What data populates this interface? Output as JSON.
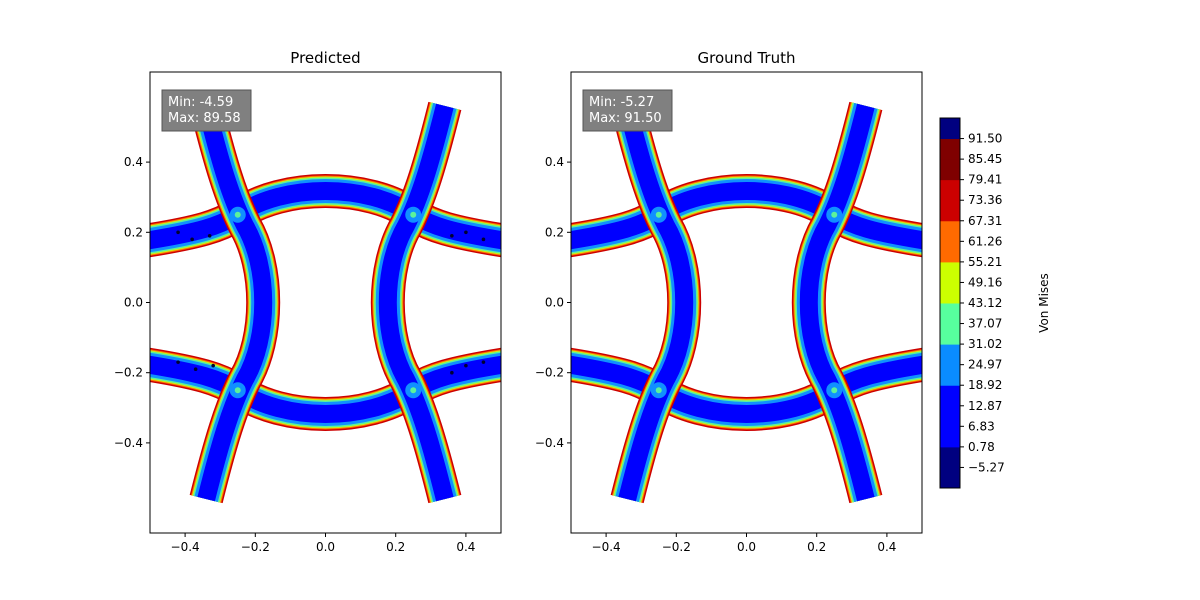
{
  "chart_data": [
    {
      "type": "heatmap",
      "title": "Predicted",
      "xlim": [
        -0.5,
        0.5
      ],
      "ylim": [
        -0.5,
        0.5
      ],
      "xticks": [
        "−0.4",
        "−0.2",
        "0.0",
        "0.2",
        "0.4"
      ],
      "yticks": [
        "−0.4",
        "−0.2",
        "0.0",
        "0.2",
        "0.4"
      ],
      "annotation": {
        "min_label": "Min: -4.59",
        "max_label": "Max: 89.58",
        "min": -4.59,
        "max": 89.58
      },
      "noise": true
    },
    {
      "type": "heatmap",
      "title": "Ground Truth",
      "xlim": [
        -0.5,
        0.5
      ],
      "ylim": [
        -0.5,
        0.5
      ],
      "xticks": [
        "−0.4",
        "−0.2",
        "0.0",
        "0.2",
        "0.4"
      ],
      "yticks": [
        "−0.4",
        "−0.2",
        "0.0",
        "0.2",
        "0.4"
      ],
      "annotation": {
        "min_label": "Min: -5.27",
        "max_label": "Max: 91.50",
        "min": -5.27,
        "max": 91.5
      },
      "noise": false
    }
  ],
  "colorbar": {
    "label": "Von Mises",
    "levels": [
      -11.32,
      -5.27,
      0.78,
      6.83,
      12.87,
      18.92,
      24.97,
      31.02,
      37.07,
      43.12,
      49.16,
      55.21,
      61.26,
      67.31,
      73.36,
      79.41,
      85.45,
      91.5,
      97.55
    ],
    "tick_labels": [
      "91.50",
      "85.45",
      "79.41",
      "73.36",
      "67.31",
      "61.26",
      "55.21",
      "49.16",
      "43.12",
      "37.07",
      "31.02",
      "24.97",
      "18.92",
      "12.87",
      "6.83",
      "0.78",
      "−5.27"
    ],
    "colors": [
      "#7f0000",
      "#7f0000",
      "#cc0000",
      "#cc0000",
      "#ff6a00",
      "#ff6a00",
      "#ccff00",
      "#ccff00",
      "#57ff9e",
      "#57ff9e",
      "#0a8cff",
      "#0a8cff",
      "#0000ff",
      "#0000ff",
      "#0000ff",
      "#000080",
      "#000080"
    ]
  },
  "colors": {
    "band": "#0000ff",
    "edge_light": "#1090ff",
    "edge_mid": "#5cf29a",
    "edge_hi": "#d4ee10",
    "edge_peak": "#ff6800",
    "edge_max": "#cc0000",
    "annotation_bg": "#808080"
  }
}
